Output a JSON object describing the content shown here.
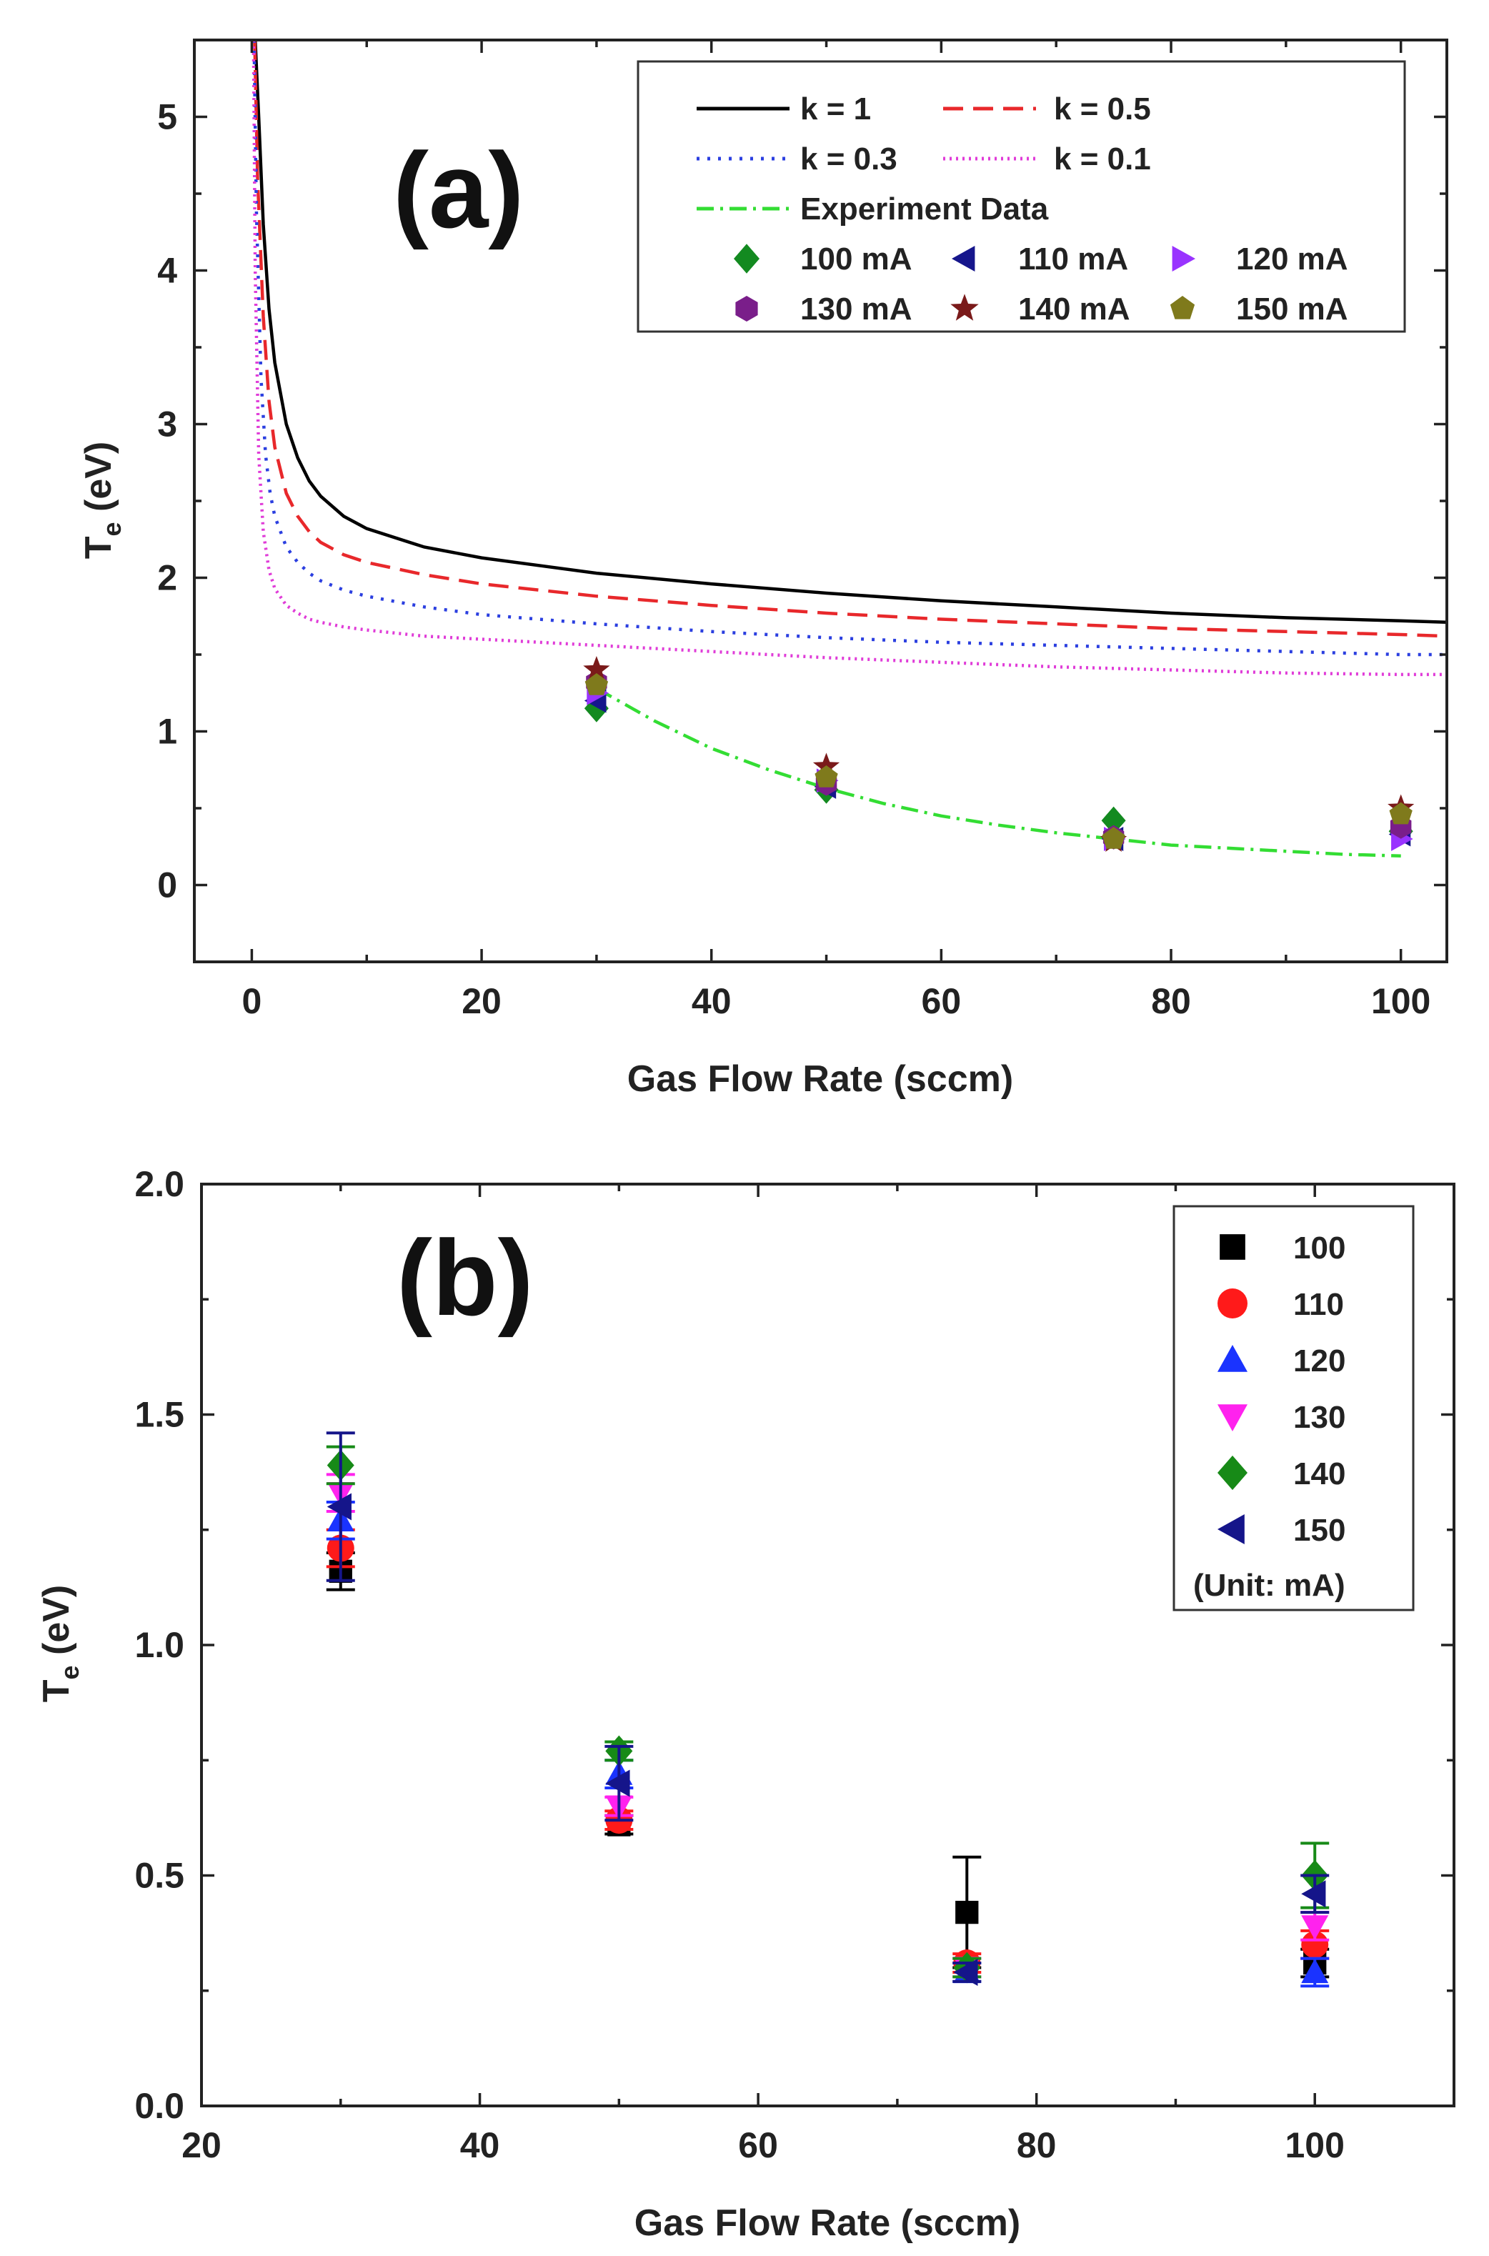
{
  "chart_data": [
    {
      "panel": "(a)",
      "type": "line",
      "xlabel": "Gas Flow Rate (sccm)",
      "ylabel": "T_e (eV)",
      "ylabel_main": "T",
      "ylabel_sub": "e",
      "ylabel_rest": " (eV)",
      "xlim": [
        -5,
        104
      ],
      "ylim": [
        -0.5,
        5.5
      ],
      "xticks": [
        0,
        20,
        40,
        60,
        80,
        100
      ],
      "yticks": [
        0,
        1,
        2,
        3,
        4,
        5
      ],
      "xtick_labels": [
        "0",
        "20",
        "40",
        "60",
        "80",
        "100"
      ],
      "ytick_labels": [
        "0",
        "1",
        "2",
        "3",
        "4",
        "5"
      ],
      "legend_position": "top-right",
      "model_curves": [
        {
          "name": "k = 1",
          "color": "#000000",
          "dash": "solid",
          "x": [
            0.3,
            0.6,
            1,
            1.5,
            2,
            3,
            4,
            5,
            6,
            8,
            10,
            15,
            20,
            30,
            40,
            50,
            60,
            70,
            80,
            90,
            100,
            104
          ],
          "y": [
            5.5,
            5.0,
            4.3,
            3.75,
            3.4,
            3.0,
            2.78,
            2.63,
            2.53,
            2.4,
            2.32,
            2.2,
            2.13,
            2.03,
            1.96,
            1.9,
            1.85,
            1.81,
            1.77,
            1.74,
            1.72,
            1.71
          ]
        },
        {
          "name": "k = 0.5",
          "color": "#e8282b",
          "dash": "28 14",
          "x": [
            0.25,
            0.5,
            1,
            1.5,
            2,
            3,
            4,
            5,
            6,
            8,
            10,
            15,
            20,
            30,
            40,
            50,
            60,
            70,
            80,
            90,
            100,
            104
          ],
          "y": [
            5.5,
            4.6,
            3.7,
            3.15,
            2.85,
            2.55,
            2.4,
            2.3,
            2.23,
            2.15,
            2.1,
            2.02,
            1.96,
            1.88,
            1.82,
            1.77,
            1.73,
            1.7,
            1.67,
            1.65,
            1.63,
            1.62
          ]
        },
        {
          "name": "k = 0.3",
          "color": "#2b3fe0",
          "dash": "4 11",
          "x": [
            0.2,
            0.4,
            0.8,
            1.2,
            1.6,
            2,
            3,
            4,
            5,
            6,
            8,
            10,
            15,
            20,
            30,
            40,
            50,
            60,
            70,
            80,
            90,
            100,
            104
          ],
          "y": [
            5.5,
            4.4,
            3.3,
            2.8,
            2.55,
            2.4,
            2.2,
            2.1,
            2.03,
            1.98,
            1.92,
            1.88,
            1.81,
            1.76,
            1.7,
            1.65,
            1.61,
            1.58,
            1.56,
            1.54,
            1.52,
            1.5,
            1.5
          ]
        },
        {
          "name": "k = 0.1",
          "color": "#e03cd8",
          "dash": "3 6",
          "x": [
            0.15,
            0.3,
            0.6,
            1,
            1.5,
            2,
            3,
            4,
            5,
            6,
            8,
            10,
            15,
            20,
            30,
            40,
            50,
            60,
            70,
            80,
            90,
            100,
            104
          ],
          "y": [
            5.5,
            4.0,
            2.8,
            2.3,
            2.05,
            1.93,
            1.82,
            1.77,
            1.73,
            1.71,
            1.68,
            1.66,
            1.62,
            1.6,
            1.56,
            1.52,
            1.48,
            1.45,
            1.42,
            1.4,
            1.38,
            1.37,
            1.37
          ]
        }
      ],
      "fit_curve": {
        "name": "Experiment Data",
        "color": "#33dd33",
        "dash": "24 9 4 9",
        "x": [
          30,
          35,
          40,
          45,
          50,
          55,
          60,
          65,
          70,
          75,
          80,
          85,
          90,
          95,
          100
        ],
        "y": [
          1.28,
          1.07,
          0.89,
          0.75,
          0.63,
          0.53,
          0.45,
          0.39,
          0.34,
          0.3,
          0.26,
          0.24,
          0.22,
          0.2,
          0.19
        ]
      },
      "scatter": [
        {
          "name": "100 mA",
          "marker": "diamond",
          "color": "#138a20",
          "x": [
            30,
            50,
            75,
            100
          ],
          "y": [
            1.15,
            0.62,
            0.42,
            0.35
          ]
        },
        {
          "name": "110 mA",
          "marker": "triangle-left",
          "color": "#16168c",
          "x": [
            30,
            50,
            75,
            100
          ],
          "y": [
            1.2,
            0.64,
            0.3,
            0.33
          ]
        },
        {
          "name": "120 mA",
          "marker": "triangle-right",
          "color": "#9933ff",
          "x": [
            30,
            50,
            75,
            100
          ],
          "y": [
            1.25,
            0.68,
            0.3,
            0.3
          ]
        },
        {
          "name": "130 mA",
          "marker": "hexagon",
          "color": "#7a1e8a",
          "x": [
            30,
            50,
            75,
            100
          ],
          "y": [
            1.32,
            0.66,
            0.31,
            0.38
          ]
        },
        {
          "name": "140 mA",
          "marker": "star",
          "color": "#7a1a1a",
          "x": [
            30,
            50,
            75,
            100
          ],
          "y": [
            1.4,
            0.77,
            0.29,
            0.5
          ]
        },
        {
          "name": "150 mA",
          "marker": "pentagon",
          "color": "#7f7a1c",
          "x": [
            30,
            50,
            75,
            100
          ],
          "y": [
            1.3,
            0.7,
            0.3,
            0.46
          ]
        }
      ]
    },
    {
      "panel": "(b)",
      "type": "scatter",
      "xlabel": "Gas Flow Rate (sccm)",
      "ylabel": "T_e (eV)",
      "ylabel_main": "T",
      "ylabel_sub": "e",
      "ylabel_rest": " (eV)",
      "xlim": [
        20,
        110
      ],
      "ylim": [
        0.0,
        2.0
      ],
      "xticks": [
        20,
        40,
        60,
        80,
        100
      ],
      "yticks": [
        0.0,
        0.5,
        1.0,
        1.5,
        2.0
      ],
      "xtick_labels": [
        "20",
        "40",
        "60",
        "80",
        "100"
      ],
      "ytick_labels": [
        "0.0",
        "0.5",
        "1.0",
        "1.5",
        "2.0"
      ],
      "legend_position": "top-right",
      "legend_unit": "(Unit: mA)",
      "series": [
        {
          "name": "100",
          "marker": "square",
          "color": "#000000",
          "x": [
            30,
            50,
            75,
            100
          ],
          "y": [
            1.16,
            0.61,
            0.42,
            0.31
          ],
          "err": [
            0.04,
            0.02,
            0.12,
            0.03
          ]
        },
        {
          "name": "110",
          "marker": "circle",
          "color": "#ff1a1a",
          "x": [
            30,
            50,
            75,
            100
          ],
          "y": [
            1.21,
            0.62,
            0.31,
            0.35
          ],
          "err": [
            0.04,
            0.02,
            0.02,
            0.03
          ]
        },
        {
          "name": "120",
          "marker": "triangle-up",
          "color": "#1a33ff",
          "x": [
            30,
            50,
            75,
            100
          ],
          "y": [
            1.27,
            0.72,
            0.29,
            0.29
          ],
          "err": [
            0.04,
            0.03,
            0.02,
            0.03
          ]
        },
        {
          "name": "130",
          "marker": "triangle-down",
          "color": "#ff22ee",
          "x": [
            30,
            50,
            75,
            100
          ],
          "y": [
            1.33,
            0.65,
            0.3,
            0.39
          ],
          "err": [
            0.04,
            0.02,
            0.02,
            0.03
          ]
        },
        {
          "name": "140",
          "marker": "diamond",
          "color": "#178a17",
          "x": [
            30,
            50,
            75,
            100
          ],
          "y": [
            1.39,
            0.77,
            0.3,
            0.5
          ],
          "err": [
            0.04,
            0.02,
            0.02,
            0.07
          ]
        },
        {
          "name": "150",
          "marker": "triangle-left",
          "color": "#15158a",
          "x": [
            30,
            50,
            75,
            100
          ],
          "y": [
            1.3,
            0.7,
            0.29,
            0.46
          ],
          "err": [
            0.16,
            0.08,
            0.02,
            0.04
          ]
        }
      ]
    }
  ]
}
